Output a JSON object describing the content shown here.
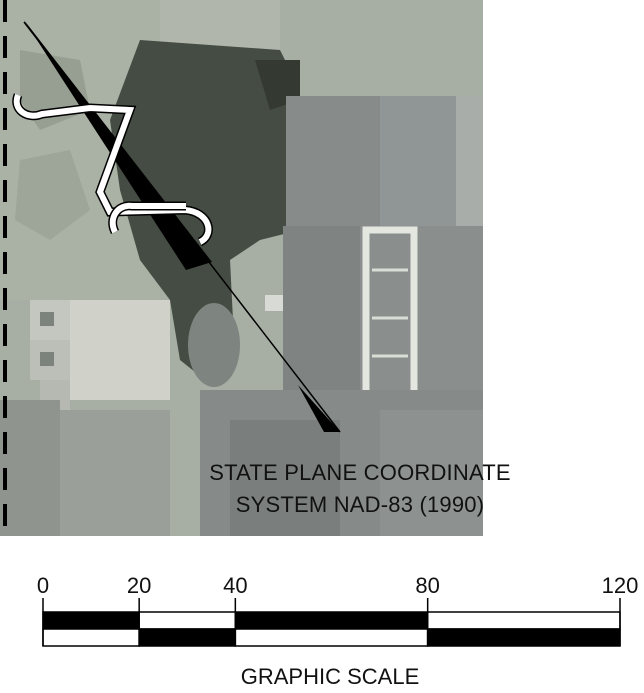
{
  "map": {
    "coordinate_system": {
      "line1": "STATE PLANE COORDINATE",
      "line2": "SYSTEM NAD-83 (1990)"
    },
    "north_arrow": {
      "icon": "north-arrow-icon"
    },
    "aerial_photo": {
      "icon": "aerial-photo"
    },
    "colors": {
      "ground": "#a7aea3",
      "roof": "#858a89",
      "shadow": "#3c4339",
      "ink": "#000000",
      "white": "#ffffff"
    }
  },
  "scale_bar": {
    "title": "GRAPHIC SCALE",
    "ticks": [
      "0",
      "20",
      "40",
      "80",
      "120"
    ],
    "tick_values": [
      0,
      20,
      40,
      80,
      120
    ]
  }
}
